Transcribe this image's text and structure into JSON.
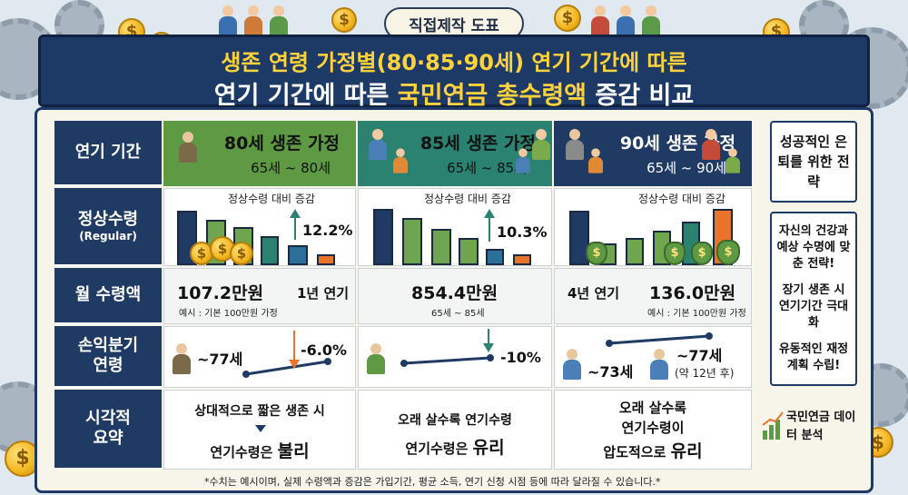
{
  "badge": "직접제작 도표",
  "title": {
    "line1": "생존 연령 가정별(80·85·90세) 연기 기간에 따른",
    "line2_pre": "연기 기간에 따른 ",
    "line2_hl": "국민연금 총수령액",
    "line2_post": " 증감 비교"
  },
  "row_headers": {
    "period": "연기 기간",
    "regular_main": "정상수령",
    "regular_sub": "(Regular)",
    "monthly": "월 수령액",
    "breakeven_main": "손익분기",
    "breakeven_sub": "연령",
    "summary_main": "시각적",
    "summary_sub": "요약"
  },
  "columns": [
    {
      "title": "80세 생존 가정",
      "range": "65세 ~ 80세"
    },
    {
      "title": "85세 생존 가정",
      "range": "65세 ~ 85세"
    },
    {
      "title": "90세 생존 가정",
      "range": "65세 ~ 90세"
    }
  ],
  "regular": {
    "col80": {
      "caption": "정상수령 대비 증감",
      "change": "12.2%"
    },
    "col85": {
      "caption": "정상수령 대비 증감",
      "change": "10.3%"
    },
    "col90": {
      "caption": "정상수령 대비 증감"
    }
  },
  "monthly": {
    "col80": {
      "amount": "107.2만원",
      "note": "예시 : 기본 100만원 가정",
      "delay": "1년 연기"
    },
    "col85": {
      "amount": "854.4만원",
      "note": "65세 ~ 85세"
    },
    "col90": {
      "delay": "4년 연기",
      "amount": "136.0만원",
      "note": "예시 : 기본 100만원 가정"
    }
  },
  "breakeven": {
    "col80": {
      "age": "~77세",
      "change": "-6.0%"
    },
    "col85": {
      "change": "-10%"
    },
    "col90": {
      "age_low": "~73세",
      "age_high": "~77세",
      "age_high_note": "(약 12년 후)"
    }
  },
  "summary": {
    "col80": {
      "line1": "상대적으로 짧은 생존 시",
      "line2_pre": "연기수령은 ",
      "line2_strong": "불리"
    },
    "col85": {
      "line1": "오래 살수록 연기수령",
      "line2_pre": "연기수령은 ",
      "line2_strong": "유리"
    },
    "col90": {
      "line1": "오래 살수록",
      "line2": "연기수령이",
      "line3_pre": "압도적으로 ",
      "line3_strong": "유리"
    }
  },
  "sidebar": {
    "strategy": "성공적인 은퇴를 위한 전략",
    "tip1": "자신의 건강과 예상 수명에 맞춘 전략!",
    "tip2": "장기 생존 시 연기기간 극대화",
    "tip3": "유동적인 재정 계획 수립!",
    "brand": "국민연금 데이터 분석"
  },
  "footnote": "*수치는 예시이며, 실제 수령액과 증감은 가입기간, 평균 소득, 연기 신청 시점 등에 따라 달라질 수 있습니다.*",
  "colors": {
    "navy": "#1f3b63",
    "green": "#5e9a43",
    "teal": "#2b8271",
    "gold": "#ffd23c",
    "orange": "#e8742a"
  }
}
